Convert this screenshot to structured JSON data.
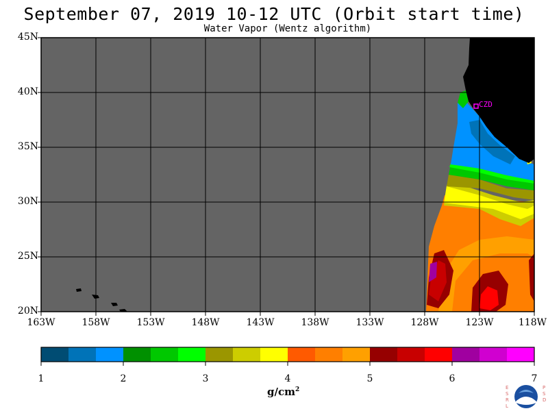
{
  "title": "September 07, 2019  10-12 UTC  (Orbit start time)",
  "subtitle": "Water Vapor (Wentz algorithm)",
  "map": {
    "lat_labels": [
      "45N",
      "40N",
      "35N",
      "30N",
      "25N",
      "20N"
    ],
    "lon_labels": [
      "163W",
      "158W",
      "153W",
      "148W",
      "143W",
      "138W",
      "133W",
      "128W",
      "123W",
      "118W"
    ],
    "station_label": "CZD",
    "colors": {
      "no_data": "#646464",
      "land": "#000000",
      "grid": "#000000",
      "station": "#ff00ff"
    }
  },
  "colorbar": {
    "tick_labels": [
      "1",
      "2",
      "3",
      "4",
      "5",
      "6",
      "7"
    ],
    "units_text": "g/cm",
    "units_exp": "2",
    "colors": [
      "#004c73",
      "#0073b8",
      "#0092ff",
      "#009000",
      "#00c800",
      "#00ff00",
      "#9b9600",
      "#cdcd00",
      "#ffff00",
      "#ff5a00",
      "#ff7f00",
      "#ffa000",
      "#960000",
      "#c80000",
      "#ff0000",
      "#a000a0",
      "#d000d0",
      "#ff00ff"
    ]
  },
  "logo": {
    "left_letters": [
      "E",
      "S",
      "R",
      "L"
    ],
    "right_letters": [
      "P",
      "S",
      "D"
    ],
    "name": "NOAA"
  }
}
